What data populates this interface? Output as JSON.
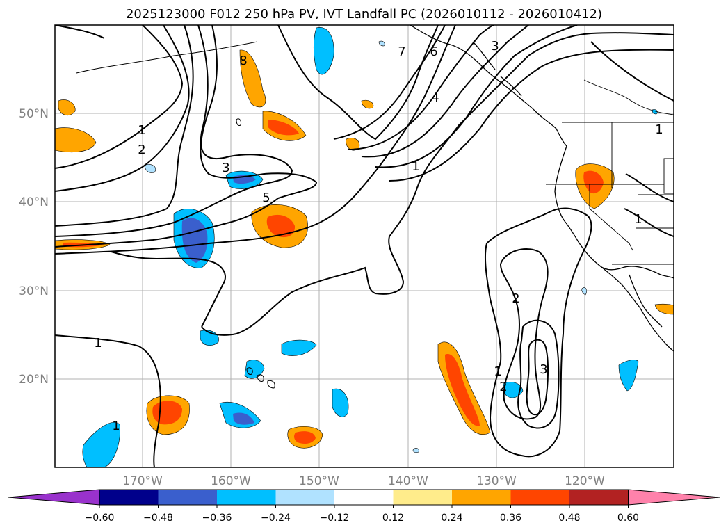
{
  "title": "2025123000 F012 250 hPa PV, IVT Landfall PC (2026010112 - 2026010412)",
  "map": {
    "lat_labels": [
      "50°N",
      "40°N",
      "30°N",
      "20°N"
    ],
    "lon_labels": [
      "170°W",
      "160°W",
      "150°W",
      "140°W",
      "130°W",
      "120°W"
    ]
  },
  "contour_labels": [
    "1",
    "2",
    "3",
    "5",
    "1",
    "8",
    "7",
    "6",
    "3",
    "4",
    "1",
    "1",
    "1",
    "2",
    "1",
    "2",
    "3",
    "1"
  ],
  "colorbar": {
    "colors": [
      "#9932cc",
      "#00008b",
      "#3a5fcd",
      "#00bfff",
      "#b0e2ff",
      "#ffffff",
      "#ffec8b",
      "#ffa500",
      "#ff4500",
      "#b22222",
      "#ff82ab"
    ],
    "ticks": [
      "−0.60",
      "−0.48",
      "−0.36",
      "−0.24",
      "−0.12",
      "0.12",
      "0.24",
      "0.36",
      "0.48",
      "0.60"
    ]
  }
}
